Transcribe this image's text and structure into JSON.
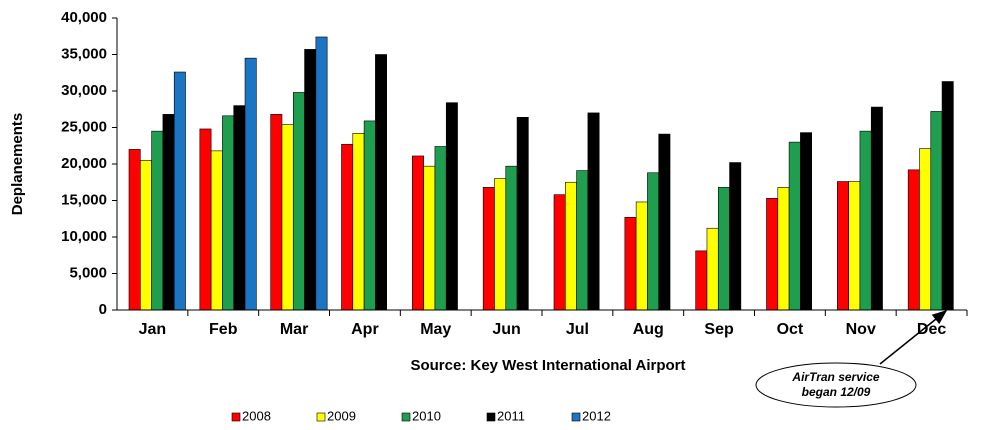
{
  "chart_data": {
    "type": "bar",
    "ylabel": "Deplanements",
    "xlabel": "Source: Key West International Airport",
    "annotation": [
      "AirTran service",
      "began 12/09"
    ],
    "categories": [
      "Jan",
      "Feb",
      "Mar",
      "Apr",
      "May",
      "Jun",
      "Jul",
      "Aug",
      "Sep",
      "Oct",
      "Nov",
      "Dec"
    ],
    "series": [
      {
        "name": "2008",
        "color": "#ff0000",
        "values": [
          22000,
          24800,
          26800,
          22700,
          21100,
          16800,
          15800,
          12700,
          8100,
          15300,
          17600,
          19200
        ]
      },
      {
        "name": "2009",
        "color": "#ffff00",
        "values": [
          20500,
          21800,
          25400,
          24200,
          19700,
          18000,
          17500,
          14800,
          11200,
          16800,
          17600,
          22100
        ]
      },
      {
        "name": "2010",
        "color": "#1e9e4e",
        "values": [
          24500,
          26600,
          29800,
          25900,
          22400,
          19700,
          19100,
          18800,
          16800,
          23000,
          24500,
          27200
        ]
      },
      {
        "name": "2011",
        "color": "#000000",
        "values": [
          26800,
          28000,
          35700,
          35000,
          28400,
          26400,
          27000,
          24100,
          20200,
          24300,
          27800,
          31300
        ]
      },
      {
        "name": "2012",
        "color": "#1b75c4",
        "values": [
          32600,
          34500,
          37400,
          null,
          null,
          null,
          null,
          null,
          null,
          null,
          null,
          null
        ]
      }
    ],
    "ylim": [
      0,
      40000
    ],
    "yticks": [
      0,
      {
        "value": 5000,
        "label": "5,000"
      },
      {
        "value": 10000,
        "label": "10,000"
      },
      {
        "value": 15000,
        "label": "15,000"
      },
      {
        "value": 20000,
        "label": "20,000"
      },
      {
        "value": 25000,
        "label": "25,000"
      },
      {
        "value": 30000,
        "label": "30,000"
      },
      {
        "value": 35000,
        "label": "35,000"
      },
      {
        "value": 40000,
        "label": "40,000"
      }
    ],
    "grid": false,
    "legend": "bottom"
  }
}
